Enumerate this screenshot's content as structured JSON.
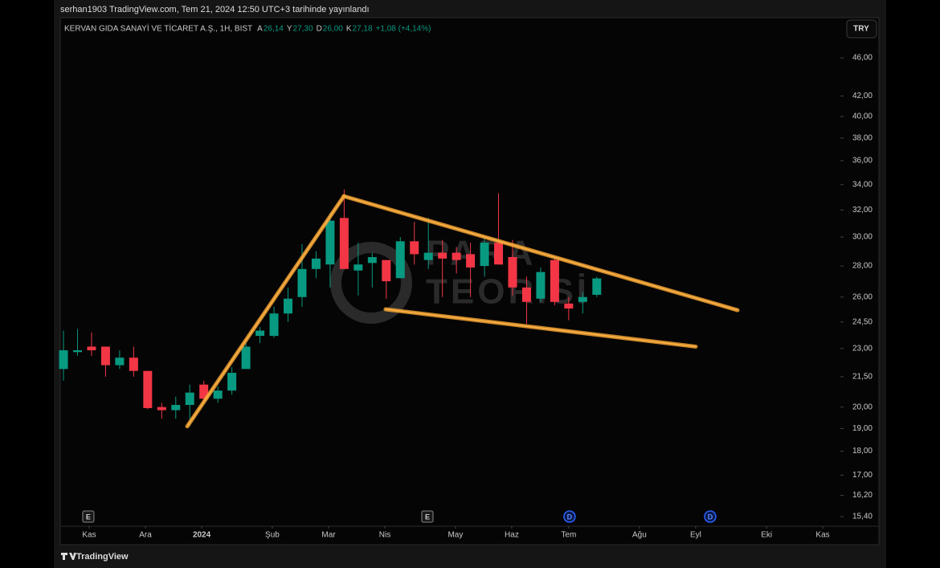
{
  "header": {
    "publisher": "serhan1903 TradingView.com, Tem 21, 2024 12:50 UTC+3 tarihinde yayınlandı",
    "footer": "TradingView",
    "currency_button": "TRY"
  },
  "chart_data": {
    "type": "candlestick",
    "title": "KERVAN GIDA SANAYİ VE TİCARET A.Ş., 1H, BIST",
    "legend_values": [
      {
        "key": "A",
        "text": "26,14"
      },
      {
        "key": "Y",
        "text": "27,30"
      },
      {
        "key": "D",
        "text": "26,00"
      },
      {
        "key": "K",
        "text": "27,18"
      }
    ],
    "change": "+1,08 (+4,14%)",
    "up_color": "#089981",
    "down_color": "#f23645",
    "candles": [
      {
        "open": 21.9,
        "high": 24.0,
        "low": 21.3,
        "close": 22.9
      },
      {
        "open": 22.8,
        "high": 24.1,
        "low": 22.6,
        "close": 22.9
      },
      {
        "open": 23.1,
        "high": 23.9,
        "low": 22.6,
        "close": 22.9
      },
      {
        "open": 23.1,
        "high": 23.1,
        "low": 21.5,
        "close": 22.1
      },
      {
        "open": 22.1,
        "high": 22.9,
        "low": 21.9,
        "close": 22.5
      },
      {
        "open": 22.5,
        "high": 23.1,
        "low": 21.5,
        "close": 21.8
      },
      {
        "open": 21.8,
        "high": 21.8,
        "low": 19.9,
        "close": 19.95
      },
      {
        "open": 20.0,
        "high": 20.2,
        "low": 19.45,
        "close": 19.85
      },
      {
        "open": 19.85,
        "high": 20.5,
        "low": 19.45,
        "close": 20.1
      },
      {
        "open": 20.1,
        "high": 21.1,
        "low": 19.1,
        "close": 20.7
      },
      {
        "open": 21.1,
        "high": 21.3,
        "low": 20.3,
        "close": 20.4
      },
      {
        "open": 20.4,
        "high": 21.0,
        "low": 20.2,
        "close": 20.8
      },
      {
        "open": 20.8,
        "high": 22.0,
        "low": 20.6,
        "close": 21.7
      },
      {
        "open": 21.9,
        "high": 23.3,
        "low": 21.9,
        "close": 23.1
      },
      {
        "open": 23.7,
        "high": 24.2,
        "low": 23.3,
        "close": 24.0
      },
      {
        "open": 23.7,
        "high": 25.4,
        "low": 23.6,
        "close": 25.0
      },
      {
        "open": 25.0,
        "high": 26.6,
        "low": 24.5,
        "close": 25.9
      },
      {
        "open": 26.0,
        "high": 29.5,
        "low": 25.4,
        "close": 27.8
      },
      {
        "open": 27.8,
        "high": 29.0,
        "low": 27.2,
        "close": 28.5
      },
      {
        "open": 28.1,
        "high": 31.8,
        "low": 26.6,
        "close": 31.2
      },
      {
        "open": 31.4,
        "high": 33.6,
        "low": 27.8,
        "close": 27.8
      },
      {
        "open": 27.7,
        "high": 29.6,
        "low": 26.1,
        "close": 28.1
      },
      {
        "open": 28.2,
        "high": 28.9,
        "low": 26.6,
        "close": 28.6
      },
      {
        "open": 28.4,
        "high": 28.4,
        "low": 25.9,
        "close": 27.0
      },
      {
        "open": 27.2,
        "high": 30.0,
        "low": 27.2,
        "close": 29.7
      },
      {
        "open": 29.7,
        "high": 31.1,
        "low": 28.1,
        "close": 28.8
      },
      {
        "open": 28.4,
        "high": 31.4,
        "low": 27.8,
        "close": 28.9
      },
      {
        "open": 28.9,
        "high": 29.8,
        "low": 26.0,
        "close": 28.5
      },
      {
        "open": 28.9,
        "high": 29.3,
        "low": 27.5,
        "close": 28.4
      },
      {
        "open": 28.8,
        "high": 29.6,
        "low": 26.0,
        "close": 27.9
      },
      {
        "open": 28.0,
        "high": 30.0,
        "low": 27.3,
        "close": 29.6
      },
      {
        "open": 29.6,
        "high": 33.3,
        "low": 28.1,
        "close": 28.1
      },
      {
        "open": 28.6,
        "high": 29.8,
        "low": 26.1,
        "close": 26.6
      },
      {
        "open": 26.6,
        "high": 27.3,
        "low": 24.4,
        "close": 25.7
      },
      {
        "open": 25.9,
        "high": 27.9,
        "low": 25.7,
        "close": 27.6
      },
      {
        "open": 28.4,
        "high": 28.5,
        "low": 25.5,
        "close": 25.7
      },
      {
        "open": 25.6,
        "high": 26.0,
        "low": 24.6,
        "close": 25.3
      },
      {
        "open": 25.7,
        "high": 26.3,
        "low": 25.0,
        "close": 26.0
      },
      {
        "open": 26.14,
        "high": 27.3,
        "low": 26.0,
        "close": 27.18
      }
    ],
    "log_scale": true,
    "ylim": [
      15.05,
      48.17
    ],
    "yticks": [
      {
        "value": 15.4,
        "label": "15,40"
      },
      {
        "value": 16.2,
        "label": "16,20"
      },
      {
        "value": 17,
        "label": "17,00"
      },
      {
        "value": 18,
        "label": "18,00"
      },
      {
        "value": 19,
        "label": "19,00"
      },
      {
        "value": 20,
        "label": "20,00"
      },
      {
        "value": 21.5,
        "label": "21,50"
      },
      {
        "value": 23,
        "label": "23,00"
      },
      {
        "value": 24.5,
        "label": "24,50"
      },
      {
        "value": 26,
        "label": "26,00"
      },
      {
        "value": 28,
        "label": "28,00"
      },
      {
        "value": 30,
        "label": "30,00"
      },
      {
        "value": 32,
        "label": "32,00"
      },
      {
        "value": 34,
        "label": "34,00"
      },
      {
        "value": 36,
        "label": "36,00"
      },
      {
        "value": 38,
        "label": "38,00"
      },
      {
        "value": 40,
        "label": "40,00"
      },
      {
        "value": 42,
        "label": "42,00"
      },
      {
        "value": 46,
        "label": "46,00"
      }
    ],
    "xlim": [
      -0.23,
      55.3
    ],
    "xticks": [
      {
        "value": 1.83,
        "label": "Kas"
      },
      {
        "value": 5.84,
        "label": "Ara"
      },
      {
        "value": 9.85,
        "label": "2024"
      },
      {
        "value": 14.88,
        "label": "Şub"
      },
      {
        "value": 18.89,
        "label": "Mar"
      },
      {
        "value": 22.9,
        "label": "Nis"
      },
      {
        "value": 27.93,
        "label": "May"
      },
      {
        "value": 31.94,
        "label": "Haz"
      },
      {
        "value": 36.0,
        "label": "Tem"
      },
      {
        "value": 41.04,
        "label": "Ağu"
      },
      {
        "value": 45.05,
        "label": "Eyl"
      },
      {
        "value": 50.1,
        "label": "Eki"
      },
      {
        "value": 54.1,
        "label": "Kas"
      }
    ],
    "events": [
      {
        "x": 1.77,
        "label": "E"
      },
      {
        "x": 25.93,
        "label": "E"
      },
      {
        "x": 36.06,
        "label": "D"
      },
      {
        "x": 46.08,
        "label": "D"
      }
    ],
    "drawings_color": "#f0a030",
    "drawings": [
      {
        "x": [
          8.82,
          19.98
        ],
        "y": [
          19.1,
          33.07
        ]
      },
      {
        "x": [
          19.98,
          48.03
        ],
        "y": [
          33.07,
          25.2
        ]
      },
      {
        "x": [
          22.95,
          45.05
        ],
        "y": [
          25.25,
          23.1
        ]
      }
    ],
    "watermark": [
      "PARA",
      "TEORİSİ"
    ]
  }
}
